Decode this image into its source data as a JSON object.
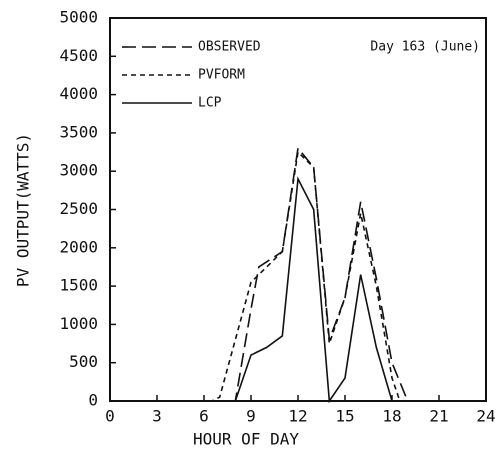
{
  "chart_data": {
    "type": "line",
    "xlabel": "HOUR OF DAY",
    "ylabel": "PV OUTPUT(WATTS)",
    "annotation": "Day 163 (June)",
    "xlim": [
      0,
      24
    ],
    "xticks": [
      0,
      3,
      6,
      9,
      12,
      15,
      18,
      21,
      24
    ],
    "ylim": [
      0,
      5000
    ],
    "yticks": [
      0,
      500,
      1000,
      1500,
      2000,
      2500,
      3000,
      3500,
      4000,
      4500,
      5000
    ],
    "series": [
      {
        "name": "OBSERVED",
        "color": "#111",
        "dash": "long",
        "x": [
          0,
          8,
          9,
          9.5,
          11,
          12,
          13,
          14,
          15,
          16,
          17,
          18,
          19,
          24
        ],
        "values": [
          0,
          0,
          1200,
          1750,
          1950,
          3300,
          3050,
          800,
          1350,
          2600,
          1600,
          500,
          0,
          0
        ]
      },
      {
        "name": "PVFORM",
        "color": "#111",
        "dash": "short",
        "x": [
          0,
          6.5,
          7,
          9,
          11,
          12,
          13,
          14,
          15,
          16,
          17,
          18,
          18.5,
          24
        ],
        "values": [
          0,
          0,
          50,
          1550,
          1950,
          3250,
          3050,
          750,
          1350,
          2450,
          1500,
          300,
          0,
          0
        ]
      },
      {
        "name": "LCP",
        "color": "#111",
        "dash": "solid",
        "x": [
          0,
          8,
          9,
          10,
          11,
          12,
          13,
          14,
          15,
          16,
          17,
          18,
          24
        ],
        "values": [
          0,
          0,
          600,
          700,
          850,
          2900,
          2500,
          0,
          300,
          1650,
          700,
          0,
          0
        ]
      }
    ]
  }
}
